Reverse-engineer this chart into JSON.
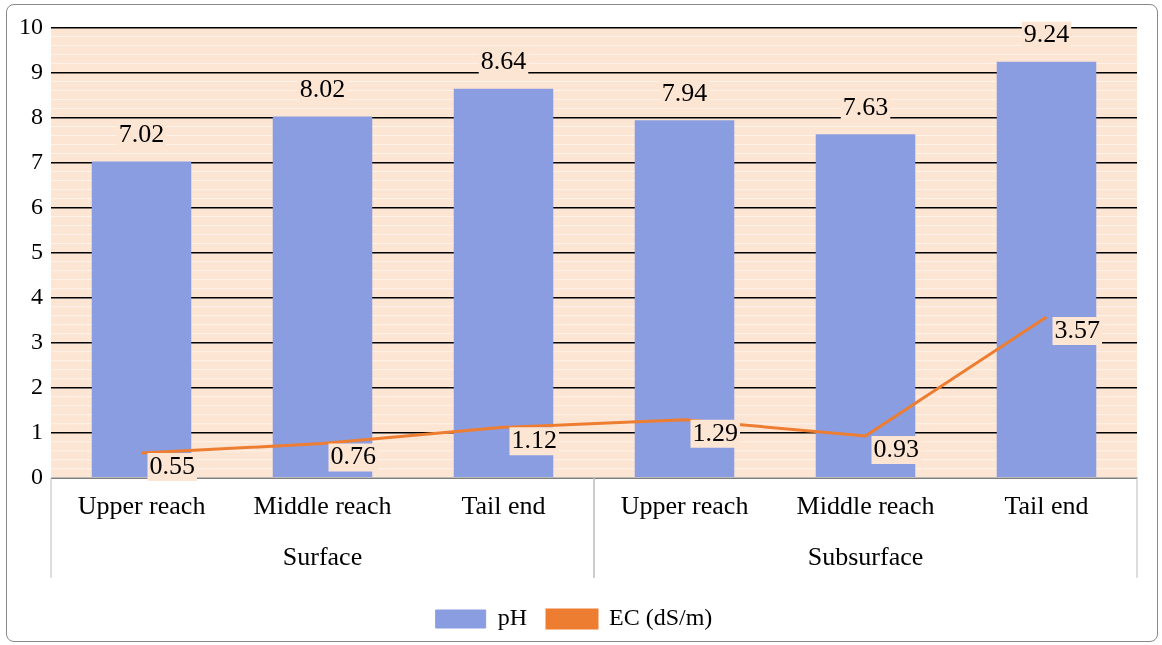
{
  "chart_data": {
    "type": "bar",
    "categories": [
      "Upper reach",
      "Middle reach",
      "Tail end",
      "Upper reach",
      "Middle reach",
      "Tail end"
    ],
    "series": [
      {
        "name": "pH",
        "color": "#8a9de0",
        "values": [
          7.02,
          8.02,
          8.64,
          7.94,
          7.63,
          9.24
        ]
      },
      {
        "name": "EC (dS/m)",
        "type": "line",
        "color": "#ed7d31",
        "values": [
          0.55,
          0.76,
          1.12,
          1.29,
          0.93,
          3.57
        ]
      }
    ],
    "annotations": [
      "Surface",
      "Subsurface"
    ],
    "ylim": [
      0,
      10
    ],
    "yticks": [
      0,
      1,
      2,
      3,
      4,
      5,
      6,
      7,
      8,
      9,
      10
    ],
    "grid": "y",
    "legend": "bottom",
    "data_labels": true,
    "marker": "none",
    "line_style": "solid"
  }
}
